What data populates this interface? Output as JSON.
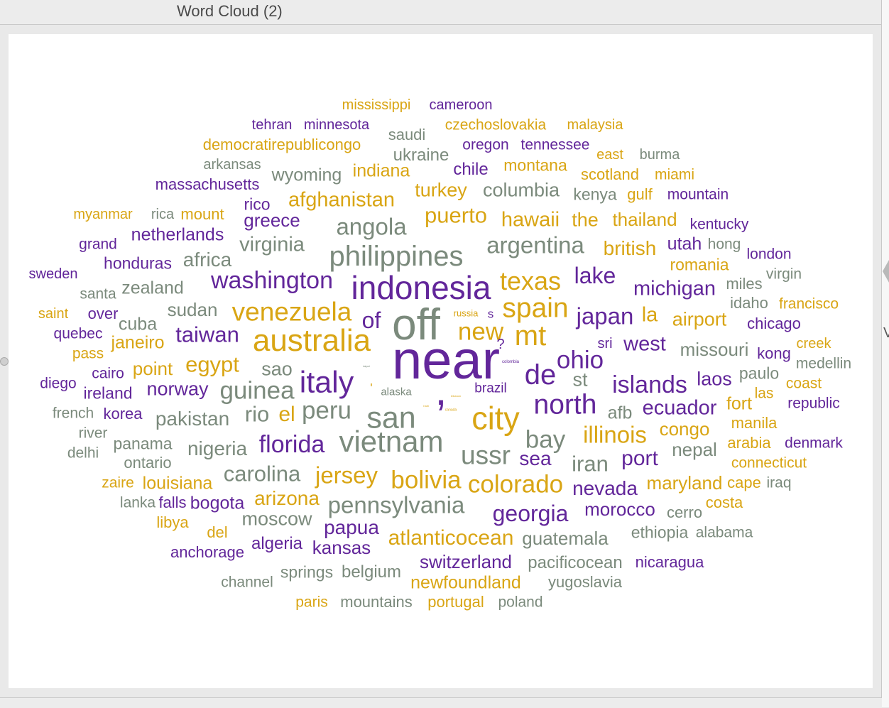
{
  "window": {
    "title": "Word Cloud (2)"
  },
  "edge_letter": "V",
  "palette": {
    "gold": "#d9a514",
    "purple": "#62269a",
    "gray": "#7b8a7c"
  },
  "words": [
    "mississippi",
    "cameroon",
    "tehran",
    "minnesota",
    "saudi",
    "czechoslovakia",
    "malaysia",
    "democratirepublicongo",
    "oregon",
    "tennessee",
    "ukraine",
    "arkansas",
    "east",
    "burma",
    "wyoming",
    "indiana",
    "chile",
    "montana",
    "scotland",
    "miami",
    "massachusetts",
    "turkey",
    "columbia",
    "kenya",
    "gulf",
    "mountain",
    "rico",
    "afghanistan",
    "myanmar",
    "rica",
    "mount",
    "greece",
    "angola",
    "puerto",
    "hawaii",
    "the",
    "thailand",
    "kentucky",
    "netherlands",
    "grand",
    "virginia",
    "philippines",
    "argentina",
    "british",
    "utah",
    "hong",
    "london",
    "honduras",
    "africa",
    "romania",
    "sweden",
    "washington",
    "indonesia",
    "texas",
    "lake",
    "michigan",
    "miles",
    "virgin",
    "santa",
    "zealand",
    "idaho",
    "francisco",
    "saint",
    "over",
    "sudan",
    "venezuela",
    "of",
    "off",
    "spain",
    "japan",
    "la",
    "airport",
    "chicago",
    "russia",
    "s",
    "quebec",
    "cuba",
    "taiwan",
    "australia",
    "new",
    "mt",
    "sri",
    "west",
    "missouri",
    "kong",
    "creek",
    "pass",
    "janeiro",
    "?",
    "ohio",
    "medellin",
    "egypt",
    "point",
    "cairo",
    "sao",
    "near",
    "de",
    "st",
    "islands",
    "laos",
    "paulo",
    "diego",
    "italy",
    ",",
    "alaska",
    "brazil",
    "coast",
    "ireland",
    "norway",
    "guinea",
    "north",
    "ecuador",
    "fort",
    "las",
    "republic",
    "french",
    "korea",
    "pakistan",
    "rio",
    "el",
    "peru",
    "san",
    "city",
    "afb",
    "river",
    "illinois",
    "congo",
    "manila",
    "delhi",
    "panama",
    "nigeria",
    "florida",
    "vietnam",
    "ussr",
    "bay",
    "nepal",
    "arabia",
    "denmark",
    "ontario",
    "sea",
    "iran",
    "port",
    "connecticut",
    "zaire",
    "louisiana",
    "carolina",
    "jersey",
    "bolivia",
    "colorado",
    "nevada",
    "maryland",
    "cape",
    "iraq",
    "lanka",
    "falls",
    "bogota",
    "arizona",
    "pennsylvania",
    "georgia",
    "morocco",
    "cerro",
    "costa",
    "libya",
    "moscow",
    "del",
    "papua",
    "atlanticocean",
    "guatemala",
    "ethiopia",
    "alabama",
    "anchorage",
    "algeria",
    "kansas",
    "switzerland",
    "pacificocean",
    "nicaragua",
    "springs",
    "belgium",
    "channel",
    "newfoundland",
    "yugoslavia",
    "paris",
    "mountains",
    "portugal",
    "poland",
    "'",
    "colombia",
    "canada",
    "haiti",
    "taipei",
    "lebanon"
  ]
}
